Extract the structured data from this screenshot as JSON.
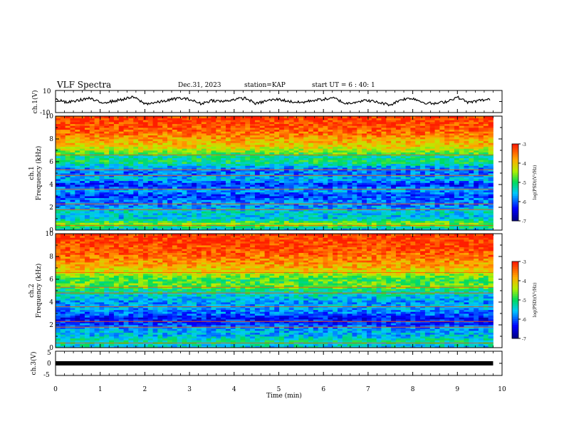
{
  "header": {
    "title": "VLF Spectra",
    "date": "Dec.31, 2023",
    "station": "station=KAP",
    "start_ut": "start UT =  6 : 40: 1"
  },
  "chart_data": [
    {
      "id": "ch1-voltage",
      "type": "line",
      "ylabel": "ch.1(V)",
      "ylim": [
        -10,
        10
      ],
      "y_ticks": [
        "10",
        "-10"
      ],
      "xlim": [
        0,
        10
      ],
      "series": [
        {
          "color": "#000000",
          "x": [
            0,
            0.25,
            0.5,
            0.75,
            1,
            1.25,
            1.5,
            1.75,
            2,
            2.25,
            2.5,
            2.75,
            3,
            3.25,
            3.5,
            3.75,
            4,
            4.25,
            4.5,
            4.75,
            5,
            5.25,
            5.5,
            5.75,
            6,
            6.25,
            6.5,
            6.75,
            7,
            7.25,
            7.5,
            7.75,
            8,
            8.25,
            8.5,
            8.75,
            9,
            9.25,
            9.5,
            9.75
          ],
          "values": [
            2,
            -1,
            1,
            3,
            -1,
            0,
            2,
            4,
            -2,
            -1,
            1,
            3,
            2,
            -2,
            1,
            0,
            2,
            3,
            -2,
            1,
            2,
            0,
            -1,
            1,
            2,
            3,
            -2,
            0,
            1,
            -1,
            -3,
            2,
            3,
            -1,
            -2,
            0,
            4,
            -1,
            1,
            2
          ]
        }
      ]
    },
    {
      "id": "ch1-spectrogram",
      "type": "heatmap",
      "ylabel": "ch.1\nFrequency  (kHz)",
      "ylabel_lines": [
        "ch.1",
        "Frequency  (kHz)"
      ],
      "ylim": [
        0,
        10
      ],
      "y_ticks": [
        "0",
        "2",
        "4",
        "6",
        "8",
        "10"
      ],
      "xlim": [
        0,
        10
      ],
      "colorbar": {
        "label": "log(PSD)(V²/Hz)",
        "range": [
          -7,
          -3
        ],
        "ticks": [
          "-3",
          "-4",
          "-5",
          "-6",
          "-7"
        ]
      },
      "band_profile": [
        -5.5,
        -4.5,
        -5.6,
        -5.4,
        -5.8,
        -5.9,
        -6.2,
        -5.7,
        -6.3,
        -5.6,
        -6.0,
        -5.8,
        -5.0,
        -5.3,
        -4.4,
        -4.0,
        -3.8,
        -3.5,
        -3.3,
        -3.2,
        -3.1
      ]
    },
    {
      "id": "ch2-spectrogram",
      "type": "heatmap",
      "ylabel": "ch.2\nFrequency  (kHz)",
      "ylabel_lines": [
        "ch.2",
        "Frequency  (kHz)"
      ],
      "ylim": [
        0,
        10
      ],
      "y_ticks": [
        "0",
        "2",
        "4",
        "6",
        "8",
        "10"
      ],
      "xlim": [
        0,
        10
      ],
      "colorbar": {
        "label": "log(PSD)(V²/Hz)",
        "range": [
          -7,
          -3
        ],
        "ticks": [
          "-3",
          "-4",
          "-5",
          "-6",
          "-7"
        ]
      },
      "band_profile": [
        -5.5,
        -5.2,
        -5.6,
        -5.7,
        -6.1,
        -6.4,
        -6.0,
        -5.7,
        -5.8,
        -5.5,
        -5.2,
        -4.6,
        -4.9,
        -4.4,
        -3.9,
        -3.7,
        -3.5,
        -3.3,
        -3.2,
        -3.15,
        -3.1
      ]
    },
    {
      "id": "ch3-voltage",
      "type": "line",
      "ylabel": "ch.3(V)",
      "ylim": [
        -5,
        5
      ],
      "y_ticks": [
        "5",
        "0",
        "-5"
      ],
      "xlim": [
        0,
        10
      ],
      "xlabel": "Time  (min)",
      "x_ticks": [
        "0",
        "1",
        "2",
        "3",
        "4",
        "5",
        "6",
        "7",
        "8",
        "9",
        "10"
      ],
      "series": [
        {
          "color": "#000000",
          "x": [
            0,
            9.8
          ],
          "values": [
            0,
            0
          ]
        }
      ]
    }
  ]
}
